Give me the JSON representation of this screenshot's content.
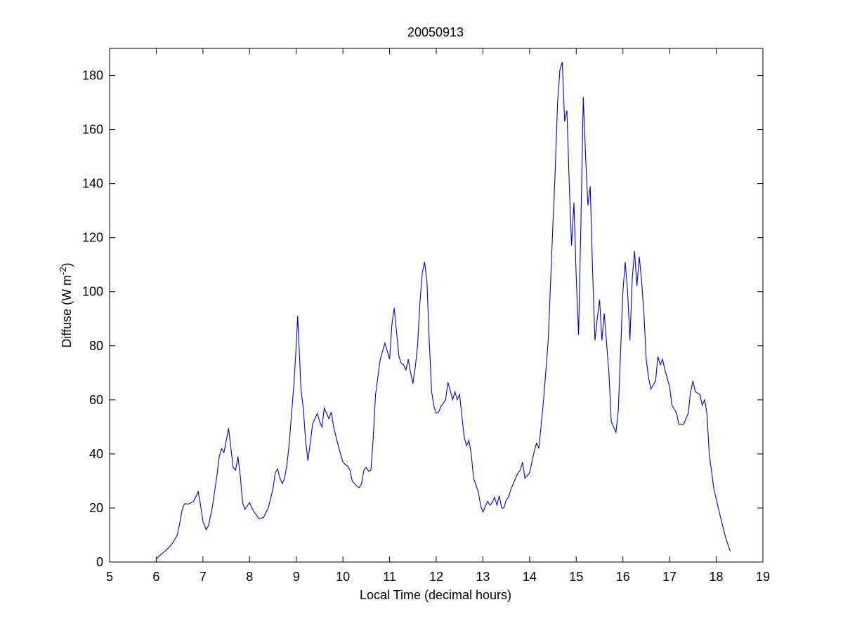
{
  "chart_data": {
    "type": "line",
    "title": "20050913",
    "xlabel": "Local Time (decimal hours)",
    "ylabel_parts": [
      "Diffuse (W m",
      "-2",
      ")"
    ],
    "xlim": [
      5,
      19
    ],
    "ylim": [
      0,
      190
    ],
    "xticks": [
      5,
      6,
      7,
      8,
      9,
      10,
      11,
      12,
      13,
      14,
      15,
      16,
      17,
      18,
      19
    ],
    "yticks": [
      0,
      20,
      40,
      60,
      80,
      100,
      120,
      140,
      160,
      180
    ],
    "grid": false,
    "series": [
      {
        "color": "#0000cc",
        "points": [
          [
            6.0,
            1
          ],
          [
            6.05,
            2
          ],
          [
            6.15,
            3.5
          ],
          [
            6.25,
            5
          ],
          [
            6.35,
            7
          ],
          [
            6.45,
            10
          ],
          [
            6.5,
            14
          ],
          [
            6.55,
            19
          ],
          [
            6.6,
            21.5
          ],
          [
            6.7,
            21.5
          ],
          [
            6.8,
            22.5
          ],
          [
            6.9,
            26
          ],
          [
            6.95,
            21
          ],
          [
            7.0,
            15
          ],
          [
            7.07,
            12
          ],
          [
            7.12,
            13.5
          ],
          [
            7.2,
            20
          ],
          [
            7.3,
            32
          ],
          [
            7.35,
            39
          ],
          [
            7.4,
            42
          ],
          [
            7.45,
            40.5
          ],
          [
            7.5,
            45
          ],
          [
            7.55,
            49.5
          ],
          [
            7.6,
            42
          ],
          [
            7.65,
            35
          ],
          [
            7.7,
            34
          ],
          [
            7.75,
            39
          ],
          [
            7.8,
            32
          ],
          [
            7.85,
            22
          ],
          [
            7.9,
            19.5
          ],
          [
            8.0,
            22
          ],
          [
            8.05,
            20
          ],
          [
            8.1,
            18.5
          ],
          [
            8.2,
            16
          ],
          [
            8.3,
            16.5
          ],
          [
            8.4,
            20
          ],
          [
            8.5,
            27
          ],
          [
            8.55,
            33
          ],
          [
            8.6,
            34.5
          ],
          [
            8.65,
            31
          ],
          [
            8.7,
            29
          ],
          [
            8.75,
            31
          ],
          [
            8.8,
            36
          ],
          [
            8.85,
            44
          ],
          [
            8.9,
            55
          ],
          [
            8.95,
            66
          ],
          [
            9.0,
            80
          ],
          [
            9.03,
            91
          ],
          [
            9.06,
            80
          ],
          [
            9.1,
            64
          ],
          [
            9.15,
            57
          ],
          [
            9.2,
            45
          ],
          [
            9.25,
            37.5
          ],
          [
            9.3,
            44
          ],
          [
            9.35,
            51
          ],
          [
            9.45,
            55
          ],
          [
            9.5,
            52
          ],
          [
            9.55,
            50
          ],
          [
            9.6,
            57
          ],
          [
            9.65,
            55
          ],
          [
            9.7,
            53
          ],
          [
            9.75,
            55.5
          ],
          [
            9.8,
            50
          ],
          [
            9.9,
            43
          ],
          [
            10.0,
            37
          ],
          [
            10.05,
            36
          ],
          [
            10.1,
            35.5
          ],
          [
            10.15,
            34
          ],
          [
            10.2,
            30
          ],
          [
            10.3,
            28
          ],
          [
            10.35,
            27.5
          ],
          [
            10.4,
            29
          ],
          [
            10.45,
            34
          ],
          [
            10.5,
            35
          ],
          [
            10.55,
            33.5
          ],
          [
            10.6,
            34
          ],
          [
            10.65,
            46
          ],
          [
            10.7,
            62
          ],
          [
            10.8,
            75
          ],
          [
            10.9,
            81
          ],
          [
            10.95,
            78
          ],
          [
            11.0,
            75
          ],
          [
            11.05,
            88
          ],
          [
            11.1,
            94
          ],
          [
            11.15,
            85
          ],
          [
            11.2,
            76
          ],
          [
            11.25,
            73.5
          ],
          [
            11.3,
            73
          ],
          [
            11.35,
            71
          ],
          [
            11.4,
            75
          ],
          [
            11.45,
            70
          ],
          [
            11.5,
            66
          ],
          [
            11.55,
            72
          ],
          [
            11.6,
            80
          ],
          [
            11.65,
            96
          ],
          [
            11.7,
            107
          ],
          [
            11.75,
            111
          ],
          [
            11.8,
            104
          ],
          [
            11.85,
            82
          ],
          [
            11.9,
            63
          ],
          [
            11.95,
            57.5
          ],
          [
            12.0,
            55
          ],
          [
            12.05,
            55.5
          ],
          [
            12.1,
            57.5
          ],
          [
            12.2,
            60
          ],
          [
            12.25,
            66.5
          ],
          [
            12.3,
            63.5
          ],
          [
            12.35,
            60
          ],
          [
            12.4,
            63
          ],
          [
            12.45,
            60
          ],
          [
            12.5,
            62
          ],
          [
            12.55,
            54
          ],
          [
            12.6,
            46
          ],
          [
            12.65,
            43
          ],
          [
            12.7,
            45
          ],
          [
            12.75,
            40
          ],
          [
            12.8,
            31
          ],
          [
            12.9,
            26
          ],
          [
            12.95,
            21
          ],
          [
            13.0,
            18.5
          ],
          [
            13.05,
            20.5
          ],
          [
            13.1,
            22.5
          ],
          [
            13.15,
            21
          ],
          [
            13.2,
            22
          ],
          [
            13.25,
            24
          ],
          [
            13.3,
            21
          ],
          [
            13.35,
            24.5
          ],
          [
            13.4,
            20
          ],
          [
            13.45,
            20
          ],
          [
            13.5,
            23
          ],
          [
            13.55,
            24
          ],
          [
            13.6,
            27
          ],
          [
            13.7,
            31
          ],
          [
            13.75,
            33
          ],
          [
            13.8,
            34
          ],
          [
            13.85,
            37
          ],
          [
            13.9,
            31
          ],
          [
            14.0,
            33
          ],
          [
            14.05,
            37
          ],
          [
            14.1,
            41
          ],
          [
            14.15,
            44
          ],
          [
            14.2,
            42
          ],
          [
            14.3,
            60
          ],
          [
            14.4,
            82
          ],
          [
            14.5,
            125
          ],
          [
            14.55,
            145
          ],
          [
            14.6,
            170
          ],
          [
            14.65,
            182
          ],
          [
            14.7,
            185
          ],
          [
            14.75,
            163
          ],
          [
            14.8,
            167
          ],
          [
            14.85,
            140
          ],
          [
            14.9,
            117
          ],
          [
            14.95,
            133
          ],
          [
            15.0,
            105
          ],
          [
            15.05,
            84
          ],
          [
            15.1,
            125
          ],
          [
            15.15,
            172
          ],
          [
            15.2,
            150
          ],
          [
            15.25,
            132
          ],
          [
            15.3,
            139
          ],
          [
            15.35,
            108
          ],
          [
            15.4,
            82
          ],
          [
            15.45,
            90
          ],
          [
            15.5,
            97
          ],
          [
            15.55,
            82
          ],
          [
            15.6,
            92
          ],
          [
            15.7,
            70
          ],
          [
            15.75,
            52
          ],
          [
            15.85,
            48
          ],
          [
            15.9,
            56
          ],
          [
            15.95,
            78
          ],
          [
            16.0,
            100
          ],
          [
            16.05,
            111
          ],
          [
            16.1,
            100
          ],
          [
            16.15,
            82
          ],
          [
            16.2,
            105
          ],
          [
            16.25,
            115
          ],
          [
            16.3,
            102
          ],
          [
            16.35,
            113
          ],
          [
            16.4,
            104
          ],
          [
            16.45,
            92
          ],
          [
            16.5,
            75
          ],
          [
            16.55,
            68
          ],
          [
            16.6,
            64
          ],
          [
            16.7,
            67
          ],
          [
            16.75,
            76
          ],
          [
            16.8,
            73
          ],
          [
            16.85,
            75
          ],
          [
            16.9,
            71
          ],
          [
            16.95,
            68
          ],
          [
            17.0,
            65
          ],
          [
            17.05,
            58
          ],
          [
            17.15,
            55
          ],
          [
            17.2,
            51
          ],
          [
            17.3,
            51
          ],
          [
            17.4,
            55
          ],
          [
            17.45,
            63
          ],
          [
            17.5,
            67
          ],
          [
            17.55,
            63
          ],
          [
            17.65,
            62
          ],
          [
            17.7,
            58
          ],
          [
            17.75,
            60
          ],
          [
            17.8,
            55
          ],
          [
            17.85,
            40
          ],
          [
            17.95,
            27
          ],
          [
            18.1,
            16
          ],
          [
            18.2,
            9
          ],
          [
            18.3,
            4
          ]
        ]
      }
    ]
  }
}
